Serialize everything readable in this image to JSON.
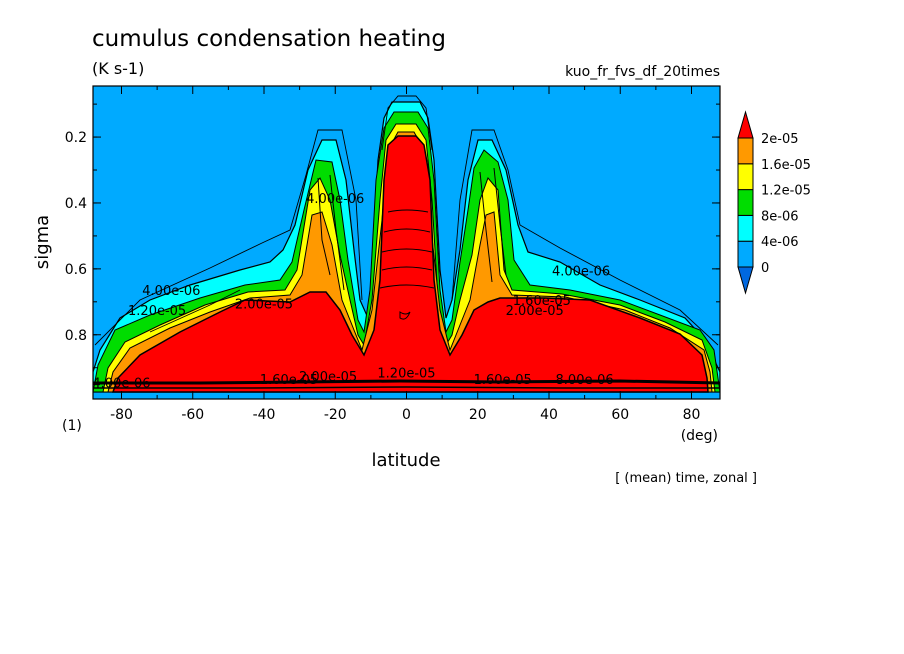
{
  "chart_data": {
    "type": "heatmap",
    "title": "cumulus condensation heating",
    "units": "(K s-1)",
    "experiment": "kuo_fr_fvs_df_20times",
    "xlabel": "latitude",
    "x_unit": "(deg)",
    "ylabel": "sigma",
    "y_unit": "(1)",
    "footer": "[ (mean) time, zonal ]",
    "xlim": [
      -88,
      88
    ],
    "ylim": [
      0.045,
      0.995
    ],
    "y_reversed": true,
    "xticks": [
      -80,
      -60,
      -40,
      -20,
      0,
      20,
      40,
      60,
      80
    ],
    "yticks": [
      0.2,
      0.4,
      0.6,
      0.8
    ],
    "colorbar": {
      "levels": [
        "0",
        "4e-06",
        "8e-06",
        "1.2e-05",
        "1.6e-05",
        "2e-05"
      ],
      "colors": [
        "#0068e0",
        "#00aaff",
        "#00ffff",
        "#00dd00",
        "#ffff00",
        "#ff9900",
        "#ff0000"
      ]
    },
    "contour_labels": [
      {
        "text": "4.00e-06",
        "lat": -66,
        "sigma": 0.68
      },
      {
        "text": "1.20e-05",
        "lat": -70,
        "sigma": 0.74
      },
      {
        "text": "2.00e-05",
        "lat": -40,
        "sigma": 0.72
      },
      {
        "text": "4.00e-06",
        "lat": -20,
        "sigma": 0.4
      },
      {
        "text": "4.00e-06",
        "lat": 49,
        "sigma": 0.62
      },
      {
        "text": "1.60e-05",
        "lat": 38,
        "sigma": 0.71
      },
      {
        "text": "2.00e-05",
        "lat": 36,
        "sigma": 0.74
      },
      {
        "text": "1.20e-05",
        "lat": 0,
        "sigma": 0.93
      },
      {
        "text": "4.00e-06",
        "lat": -80,
        "sigma": 0.96
      },
      {
        "text": "1.60e-05",
        "lat": -33,
        "sigma": 0.95
      },
      {
        "text": "2.00e-05",
        "lat": -22,
        "sigma": 0.94
      },
      {
        "text": "1.60e-05",
        "lat": 27,
        "sigma": 0.95
      },
      {
        "text": "8.00e-06",
        "lat": 50,
        "sigma": 0.95
      }
    ]
  }
}
